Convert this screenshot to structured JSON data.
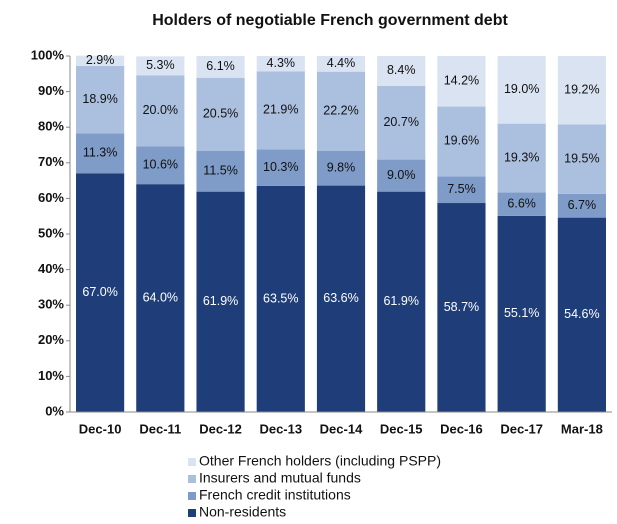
{
  "chart_data": {
    "type": "stacked_bar",
    "title": "Holders of negotiable French government debt",
    "categories": [
      "Dec-10",
      "Dec-11",
      "Dec-12",
      "Dec-13",
      "Dec-14",
      "Dec-15",
      "Dec-16",
      "Dec-17",
      "Mar-18"
    ],
    "series": [
      {
        "name": "Non-residents",
        "color": "#1f3d78",
        "values": [
          67.0,
          64.0,
          61.9,
          63.5,
          63.6,
          61.9,
          58.7,
          55.1,
          54.6
        ],
        "value_labels": [
          "67.0%",
          "64.0%",
          "61.9%",
          "63.5%",
          "63.6%",
          "61.9%",
          "58.7%",
          "55.1%",
          "54.6%"
        ]
      },
      {
        "name": "French credit institutions",
        "color": "#7f9bc8",
        "values": [
          11.3,
          10.6,
          11.5,
          10.3,
          9.8,
          9.0,
          7.5,
          6.6,
          6.7
        ],
        "value_labels": [
          "11.3%",
          "10.6%",
          "11.5%",
          "10.3%",
          "9.8%",
          "9.0%",
          "7.5%",
          "6.6%",
          "6.7%"
        ]
      },
      {
        "name": "Insurers and mutual funds",
        "color": "#abc0df",
        "values": [
          18.9,
          20.0,
          20.5,
          21.9,
          22.2,
          20.7,
          19.6,
          19.3,
          19.5
        ],
        "value_labels": [
          "18.9%",
          "20.0%",
          "20.5%",
          "21.9%",
          "22.2%",
          "20.7%",
          "19.6%",
          "19.3%",
          "19.5%"
        ]
      },
      {
        "name": "Other French holders (including PSPP)",
        "color": "#dae3f1",
        "values": [
          2.9,
          5.3,
          6.1,
          4.3,
          4.4,
          8.4,
          14.2,
          19.0,
          19.2
        ],
        "value_labels": [
          "2.9%",
          "5.3%",
          "6.1%",
          "4.3%",
          "4.4%",
          "8.4%",
          "14.2%",
          "19.0%",
          "19.2%"
        ]
      }
    ],
    "ylim": [
      0,
      100
    ],
    "yticks": [
      {
        "value": 0,
        "label": "0%"
      },
      {
        "value": 10,
        "label": "10%"
      },
      {
        "value": 20,
        "label": "20%"
      },
      {
        "value": 30,
        "label": "30%"
      },
      {
        "value": 40,
        "label": "40%"
      },
      {
        "value": 50,
        "label": "50%"
      },
      {
        "value": 60,
        "label": "60%"
      },
      {
        "value": 70,
        "label": "70%"
      },
      {
        "value": 80,
        "label": "80%"
      },
      {
        "value": 90,
        "label": "90%"
      },
      {
        "value": 100,
        "label": "100%"
      }
    ],
    "grid": false,
    "legend": "bottom"
  }
}
